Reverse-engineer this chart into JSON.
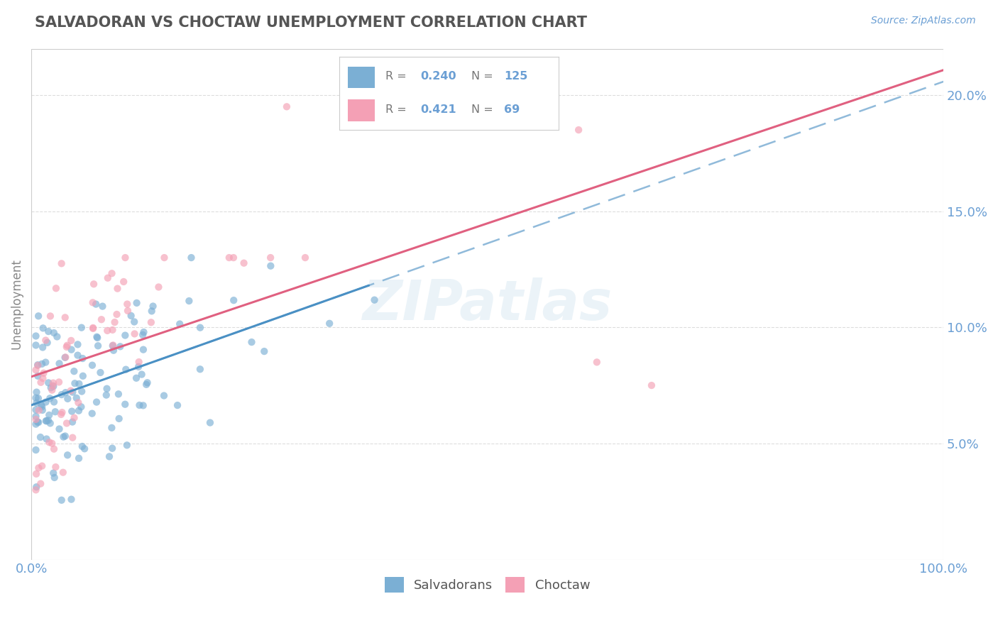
{
  "title": "SALVADORAN VS CHOCTAW UNEMPLOYMENT CORRELATION CHART",
  "source": "Source: ZipAtlas.com",
  "ylabel": "Unemployment",
  "y_ticks": [
    5.0,
    10.0,
    15.0,
    20.0
  ],
  "y_tick_labels": [
    "5.0%",
    "10.0%",
    "15.0%",
    "20.0%"
  ],
  "xlim": [
    0.0,
    1.0
  ],
  "ylim": [
    0.0,
    22.0
  ],
  "salvadoran_color": "#7BAFD4",
  "choctaw_color": "#F4A0B5",
  "salvadoran_solid_color": "#4A90C4",
  "choctaw_line_color": "#E06080",
  "salvadoran_dash_color": "#90BADA",
  "legend_r_salvadoran": "0.240",
  "legend_n_salvadoran": "125",
  "legend_r_choctaw": "0.421",
  "legend_n_choctaw": "69",
  "title_color": "#555555",
  "axis_color": "#6B9FD4",
  "label_color": "#888888",
  "background_color": "#FFFFFF",
  "watermark": "ZIPatlas",
  "grid_color": "#DDDDDD",
  "border_color": "#CCCCCC"
}
